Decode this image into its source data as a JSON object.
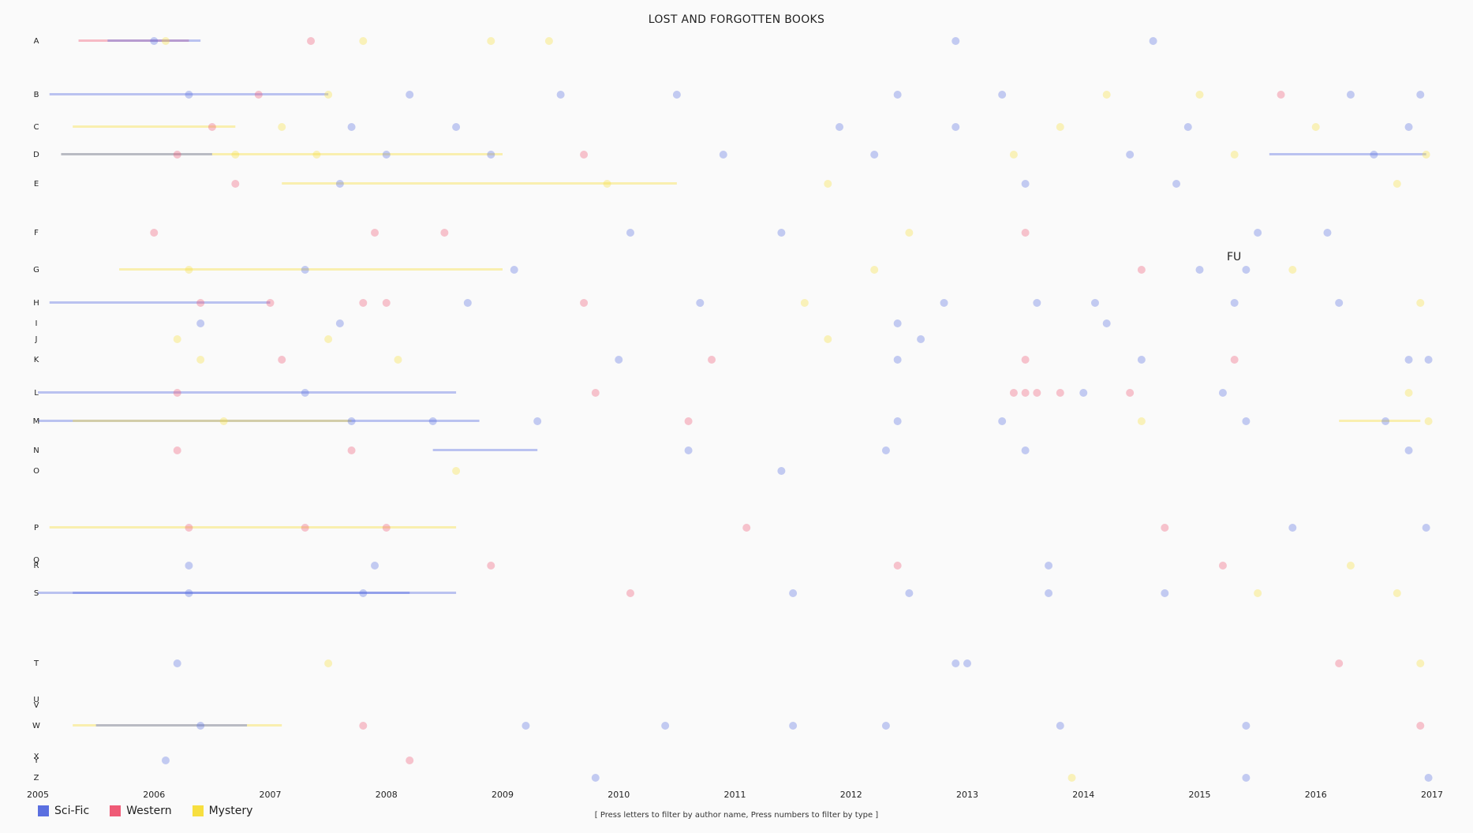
{
  "chart_data": {
    "type": "scatter",
    "title": "LOST AND FORGOTTEN BOOKS",
    "hint": "[ Press letters to filter by author name, Press numbers to filter by type ]",
    "annotation": "FU",
    "xlim": [
      2005,
      2017
    ],
    "x_ticks": [
      "2005",
      "2006",
      "2007",
      "2008",
      "2009",
      "2010",
      "2011",
      "2012",
      "2013",
      "2014",
      "2015",
      "2016",
      "2017"
    ],
    "letters": [
      "A",
      "B",
      "C",
      "D",
      "E",
      "F",
      "G",
      "H",
      "I",
      "J",
      "K",
      "L",
      "M",
      "N",
      "O",
      "P",
      "Q",
      "R",
      "S",
      "T",
      "U",
      "V",
      "W",
      "X",
      "Y",
      "Z"
    ],
    "series": [
      {
        "name": "Sci-Fic",
        "color": "#5a6fe0"
      },
      {
        "name": "Western",
        "color": "#ef5a76"
      },
      {
        "name": "Mystery",
        "color": "#f7df3f"
      }
    ],
    "points": [
      {
        "x": 2006.0,
        "letter": "A",
        "t": 0
      },
      {
        "x": 2006.1,
        "letter": "A",
        "t": 2
      },
      {
        "x": 2007.35,
        "letter": "A",
        "t": 1
      },
      {
        "x": 2007.8,
        "letter": "A",
        "t": 2
      },
      {
        "x": 2008.9,
        "letter": "A",
        "t": 2
      },
      {
        "x": 2009.4,
        "letter": "A",
        "t": 2
      },
      {
        "x": 2012.9,
        "letter": "A",
        "t": 0
      },
      {
        "x": 2014.6,
        "letter": "A",
        "t": 0
      },
      {
        "x": 2006.3,
        "letter": "B",
        "t": 0
      },
      {
        "x": 2006.9,
        "letter": "B",
        "t": 1
      },
      {
        "x": 2007.5,
        "letter": "B",
        "t": 2
      },
      {
        "x": 2008.2,
        "letter": "B",
        "t": 0
      },
      {
        "x": 2009.5,
        "letter": "B",
        "t": 0
      },
      {
        "x": 2010.5,
        "letter": "B",
        "t": 0
      },
      {
        "x": 2012.4,
        "letter": "B",
        "t": 0
      },
      {
        "x": 2013.3,
        "letter": "B",
        "t": 0
      },
      {
        "x": 2014.2,
        "letter": "B",
        "t": 2
      },
      {
        "x": 2015.0,
        "letter": "B",
        "t": 2
      },
      {
        "x": 2015.7,
        "letter": "B",
        "t": 1
      },
      {
        "x": 2016.3,
        "letter": "B",
        "t": 0
      },
      {
        "x": 2016.9,
        "letter": "B",
        "t": 0
      },
      {
        "x": 2006.5,
        "letter": "C",
        "t": 1
      },
      {
        "x": 2007.1,
        "letter": "C",
        "t": 2
      },
      {
        "x": 2007.7,
        "letter": "C",
        "t": 0
      },
      {
        "x": 2008.6,
        "letter": "C",
        "t": 0
      },
      {
        "x": 2011.9,
        "letter": "C",
        "t": 0
      },
      {
        "x": 2012.9,
        "letter": "C",
        "t": 0
      },
      {
        "x": 2013.8,
        "letter": "C",
        "t": 2
      },
      {
        "x": 2014.9,
        "letter": "C",
        "t": 0
      },
      {
        "x": 2016.0,
        "letter": "C",
        "t": 2
      },
      {
        "x": 2016.8,
        "letter": "C",
        "t": 0
      },
      {
        "x": 2006.2,
        "letter": "D",
        "t": 1
      },
      {
        "x": 2006.7,
        "letter": "D",
        "t": 2
      },
      {
        "x": 2007.4,
        "letter": "D",
        "t": 2
      },
      {
        "x": 2008.0,
        "letter": "D",
        "t": 0
      },
      {
        "x": 2008.9,
        "letter": "D",
        "t": 0
      },
      {
        "x": 2009.7,
        "letter": "D",
        "t": 1
      },
      {
        "x": 2010.9,
        "letter": "D",
        "t": 0
      },
      {
        "x": 2012.2,
        "letter": "D",
        "t": 0
      },
      {
        "x": 2013.4,
        "letter": "D",
        "t": 2
      },
      {
        "x": 2014.4,
        "letter": "D",
        "t": 0
      },
      {
        "x": 2015.3,
        "letter": "D",
        "t": 2
      },
      {
        "x": 2016.5,
        "letter": "D",
        "t": 0
      },
      {
        "x": 2016.95,
        "letter": "D",
        "t": 2
      },
      {
        "x": 2006.7,
        "letter": "E",
        "t": 1
      },
      {
        "x": 2007.6,
        "letter": "E",
        "t": 0
      },
      {
        "x": 2009.9,
        "letter": "E",
        "t": 2
      },
      {
        "x": 2011.8,
        "letter": "E",
        "t": 2
      },
      {
        "x": 2013.5,
        "letter": "E",
        "t": 0
      },
      {
        "x": 2014.8,
        "letter": "E",
        "t": 0
      },
      {
        "x": 2016.7,
        "letter": "E",
        "t": 2
      },
      {
        "x": 2006.0,
        "letter": "F",
        "t": 1
      },
      {
        "x": 2007.9,
        "letter": "F",
        "t": 1
      },
      {
        "x": 2008.5,
        "letter": "F",
        "t": 1
      },
      {
        "x": 2010.1,
        "letter": "F",
        "t": 0
      },
      {
        "x": 2011.4,
        "letter": "F",
        "t": 0
      },
      {
        "x": 2012.5,
        "letter": "F",
        "t": 2
      },
      {
        "x": 2013.5,
        "letter": "F",
        "t": 1
      },
      {
        "x": 2015.5,
        "letter": "F",
        "t": 0
      },
      {
        "x": 2016.1,
        "letter": "F",
        "t": 0
      },
      {
        "x": 2006.3,
        "letter": "G",
        "t": 2
      },
      {
        "x": 2007.3,
        "letter": "G",
        "t": 0
      },
      {
        "x": 2009.1,
        "letter": "G",
        "t": 0
      },
      {
        "x": 2012.2,
        "letter": "G",
        "t": 2
      },
      {
        "x": 2014.5,
        "letter": "G",
        "t": 1
      },
      {
        "x": 2015.0,
        "letter": "G",
        "t": 0
      },
      {
        "x": 2015.4,
        "letter": "G",
        "t": 0
      },
      {
        "x": 2015.8,
        "letter": "G",
        "t": 2
      },
      {
        "x": 2006.4,
        "letter": "H",
        "t": 1
      },
      {
        "x": 2007.0,
        "letter": "H",
        "t": 1
      },
      {
        "x": 2007.8,
        "letter": "H",
        "t": 1
      },
      {
        "x": 2008.0,
        "letter": "H",
        "t": 1
      },
      {
        "x": 2008.7,
        "letter": "H",
        "t": 0
      },
      {
        "x": 2009.7,
        "letter": "H",
        "t": 1
      },
      {
        "x": 2010.7,
        "letter": "H",
        "t": 0
      },
      {
        "x": 2011.6,
        "letter": "H",
        "t": 2
      },
      {
        "x": 2012.8,
        "letter": "H",
        "t": 0
      },
      {
        "x": 2013.6,
        "letter": "H",
        "t": 0
      },
      {
        "x": 2014.1,
        "letter": "H",
        "t": 0
      },
      {
        "x": 2015.3,
        "letter": "H",
        "t": 0
      },
      {
        "x": 2016.2,
        "letter": "H",
        "t": 0
      },
      {
        "x": 2016.9,
        "letter": "H",
        "t": 2
      },
      {
        "x": 2006.4,
        "letter": "I",
        "t": 0
      },
      {
        "x": 2007.6,
        "letter": "I",
        "t": 0
      },
      {
        "x": 2012.4,
        "letter": "I",
        "t": 0
      },
      {
        "x": 2014.2,
        "letter": "I",
        "t": 0
      },
      {
        "x": 2006.2,
        "letter": "J",
        "t": 2
      },
      {
        "x": 2007.5,
        "letter": "J",
        "t": 2
      },
      {
        "x": 2011.8,
        "letter": "J",
        "t": 2
      },
      {
        "x": 2012.6,
        "letter": "J",
        "t": 0
      },
      {
        "x": 2006.4,
        "letter": "K",
        "t": 2
      },
      {
        "x": 2007.1,
        "letter": "K",
        "t": 1
      },
      {
        "x": 2008.1,
        "letter": "K",
        "t": 2
      },
      {
        "x": 2010.0,
        "letter": "K",
        "t": 0
      },
      {
        "x": 2010.8,
        "letter": "K",
        "t": 1
      },
      {
        "x": 2012.4,
        "letter": "K",
        "t": 0
      },
      {
        "x": 2013.5,
        "letter": "K",
        "t": 1
      },
      {
        "x": 2014.5,
        "letter": "K",
        "t": 0
      },
      {
        "x": 2015.3,
        "letter": "K",
        "t": 1
      },
      {
        "x": 2016.8,
        "letter": "K",
        "t": 0
      },
      {
        "x": 2016.97,
        "letter": "K",
        "t": 0
      },
      {
        "x": 2006.2,
        "letter": "L",
        "t": 1
      },
      {
        "x": 2007.3,
        "letter": "L",
        "t": 0
      },
      {
        "x": 2009.8,
        "letter": "L",
        "t": 1
      },
      {
        "x": 2013.4,
        "letter": "L",
        "t": 1
      },
      {
        "x": 2013.5,
        "letter": "L",
        "t": 1
      },
      {
        "x": 2013.6,
        "letter": "L",
        "t": 1
      },
      {
        "x": 2013.8,
        "letter": "L",
        "t": 1
      },
      {
        "x": 2014.0,
        "letter": "L",
        "t": 0
      },
      {
        "x": 2014.4,
        "letter": "L",
        "t": 1
      },
      {
        "x": 2015.2,
        "letter": "L",
        "t": 0
      },
      {
        "x": 2016.8,
        "letter": "L",
        "t": 2
      },
      {
        "x": 2006.6,
        "letter": "M",
        "t": 2
      },
      {
        "x": 2007.7,
        "letter": "M",
        "t": 0
      },
      {
        "x": 2008.4,
        "letter": "M",
        "t": 0
      },
      {
        "x": 2009.3,
        "letter": "M",
        "t": 0
      },
      {
        "x": 2010.6,
        "letter": "M",
        "t": 1
      },
      {
        "x": 2012.4,
        "letter": "M",
        "t": 0
      },
      {
        "x": 2013.3,
        "letter": "M",
        "t": 0
      },
      {
        "x": 2014.5,
        "letter": "M",
        "t": 2
      },
      {
        "x": 2015.4,
        "letter": "M",
        "t": 0
      },
      {
        "x": 2016.6,
        "letter": "M",
        "t": 0
      },
      {
        "x": 2016.97,
        "letter": "M",
        "t": 2
      },
      {
        "x": 2006.2,
        "letter": "N",
        "t": 1
      },
      {
        "x": 2007.7,
        "letter": "N",
        "t": 1
      },
      {
        "x": 2010.6,
        "letter": "N",
        "t": 0
      },
      {
        "x": 2012.3,
        "letter": "N",
        "t": 0
      },
      {
        "x": 2013.5,
        "letter": "N",
        "t": 0
      },
      {
        "x": 2016.8,
        "letter": "N",
        "t": 0
      },
      {
        "x": 2011.4,
        "letter": "O",
        "t": 0
      },
      {
        "x": 2008.6,
        "letter": "O",
        "t": 2
      },
      {
        "x": 2006.3,
        "letter": "P",
        "t": 1
      },
      {
        "x": 2007.3,
        "letter": "P",
        "t": 1
      },
      {
        "x": 2008.0,
        "letter": "P",
        "t": 1
      },
      {
        "x": 2011.1,
        "letter": "P",
        "t": 1
      },
      {
        "x": 2014.7,
        "letter": "P",
        "t": 1
      },
      {
        "x": 2015.8,
        "letter": "P",
        "t": 0
      },
      {
        "x": 2016.95,
        "letter": "P",
        "t": 0
      },
      {
        "x": 2006.3,
        "letter": "R",
        "t": 0
      },
      {
        "x": 2007.9,
        "letter": "R",
        "t": 0
      },
      {
        "x": 2008.9,
        "letter": "R",
        "t": 1
      },
      {
        "x": 2012.4,
        "letter": "R",
        "t": 1
      },
      {
        "x": 2013.7,
        "letter": "R",
        "t": 0
      },
      {
        "x": 2015.2,
        "letter": "R",
        "t": 1
      },
      {
        "x": 2016.3,
        "letter": "R",
        "t": 2
      },
      {
        "x": 2006.3,
        "letter": "S",
        "t": 0
      },
      {
        "x": 2007.8,
        "letter": "S",
        "t": 0
      },
      {
        "x": 2010.1,
        "letter": "S",
        "t": 1
      },
      {
        "x": 2011.5,
        "letter": "S",
        "t": 0
      },
      {
        "x": 2012.5,
        "letter": "S",
        "t": 0
      },
      {
        "x": 2013.7,
        "letter": "S",
        "t": 0
      },
      {
        "x": 2014.7,
        "letter": "S",
        "t": 0
      },
      {
        "x": 2015.5,
        "letter": "S",
        "t": 2
      },
      {
        "x": 2016.7,
        "letter": "S",
        "t": 2
      },
      {
        "x": 2006.2,
        "letter": "T",
        "t": 0
      },
      {
        "x": 2007.5,
        "letter": "T",
        "t": 2
      },
      {
        "x": 2012.9,
        "letter": "T",
        "t": 0
      },
      {
        "x": 2013.0,
        "letter": "T",
        "t": 0
      },
      {
        "x": 2016.2,
        "letter": "T",
        "t": 1
      },
      {
        "x": 2016.9,
        "letter": "T",
        "t": 2
      },
      {
        "x": 2006.4,
        "letter": "W",
        "t": 0
      },
      {
        "x": 2007.8,
        "letter": "W",
        "t": 1
      },
      {
        "x": 2009.2,
        "letter": "W",
        "t": 0
      },
      {
        "x": 2010.4,
        "letter": "W",
        "t": 0
      },
      {
        "x": 2011.5,
        "letter": "W",
        "t": 0
      },
      {
        "x": 2012.3,
        "letter": "W",
        "t": 0
      },
      {
        "x": 2013.8,
        "letter": "W",
        "t": 0
      },
      {
        "x": 2015.4,
        "letter": "W",
        "t": 0
      },
      {
        "x": 2016.9,
        "letter": "W",
        "t": 1
      },
      {
        "x": 2006.1,
        "letter": "Y",
        "t": 0
      },
      {
        "x": 2008.2,
        "letter": "Y",
        "t": 1
      },
      {
        "x": 2009.8,
        "letter": "Z",
        "t": 0
      },
      {
        "x": 2013.9,
        "letter": "Z",
        "t": 2
      },
      {
        "x": 2015.4,
        "letter": "Z",
        "t": 0
      },
      {
        "x": 2016.97,
        "letter": "Z",
        "t": 0
      }
    ],
    "bars": [
      {
        "x0": 2005.35,
        "x1": 2006.3,
        "letter": "A",
        "t": 1
      },
      {
        "x0": 2005.6,
        "x1": 2006.4,
        "letter": "A",
        "t": 0
      },
      {
        "x0": 2005.1,
        "x1": 2007.5,
        "letter": "B",
        "t": 0
      },
      {
        "x0": 2005.3,
        "x1": 2006.7,
        "letter": "C",
        "t": 2
      },
      {
        "x0": 2005.2,
        "x1": 2009.0,
        "letter": "D",
        "t": 2
      },
      {
        "x0": 2005.2,
        "x1": 2006.5,
        "letter": "D",
        "t": 0
      },
      {
        "x0": 2007.1,
        "x1": 2010.5,
        "letter": "E",
        "t": 2
      },
      {
        "x0": 2005.7,
        "x1": 2009.0,
        "letter": "G",
        "t": 2
      },
      {
        "x0": 2005.1,
        "x1": 2007.0,
        "letter": "H",
        "t": 0
      },
      {
        "x0": 2005.0,
        "x1": 2008.6,
        "letter": "L",
        "t": 0
      },
      {
        "x0": 2005.0,
        "x1": 2008.8,
        "letter": "M",
        "t": 0
      },
      {
        "x0": 2005.3,
        "x1": 2007.7,
        "letter": "M",
        "t": 2
      },
      {
        "x0": 2008.4,
        "x1": 2009.3,
        "letter": "N",
        "t": 0
      },
      {
        "x0": 2005.1,
        "x1": 2008.6,
        "letter": "P",
        "t": 2
      },
      {
        "x0": 2005.0,
        "x1": 2008.6,
        "letter": "S",
        "t": 0
      },
      {
        "x0": 2005.3,
        "x1": 2008.2,
        "letter": "S",
        "t": 0
      },
      {
        "x0": 2005.3,
        "x1": 2007.1,
        "letter": "W",
        "t": 2
      },
      {
        "x0": 2005.5,
        "x1": 2006.8,
        "letter": "W",
        "t": 0
      },
      {
        "x0": 2015.6,
        "x1": 2016.95,
        "letter": "D",
        "t": 0
      },
      {
        "x0": 2016.2,
        "x1": 2016.9,
        "letter": "M",
        "t": 2
      }
    ]
  }
}
